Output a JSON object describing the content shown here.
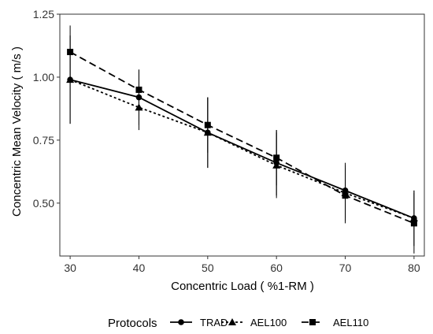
{
  "chart_data": {
    "type": "line",
    "xlabel": "Concentric Load ( %1-RM )",
    "ylabel": "Concentric Mean Velocity ( m/s )",
    "x": [
      30,
      40,
      50,
      60,
      70,
      80
    ],
    "x_ticks": [
      "30",
      "40",
      "50",
      "60",
      "70",
      "80"
    ],
    "y_ticks": [
      "0.50",
      "0.75",
      "1.00",
      "1.25"
    ],
    "xlim": [
      28.5,
      81.5
    ],
    "ylim": [
      0.29,
      1.25
    ],
    "grid": false,
    "legend": {
      "title": "Protocols",
      "position": "bottom"
    },
    "series": [
      {
        "name": "TRAD",
        "marker": "circle",
        "dash": "solid",
        "values": [
          0.99,
          0.92,
          0.78,
          0.66,
          0.55,
          0.44
        ],
        "error": [
          0.175,
          0.11,
          0.14,
          0.13,
          0.11,
          0.11
        ]
      },
      {
        "name": "AEL100",
        "marker": "triangle",
        "dash": "dotted",
        "values": [
          0.99,
          0.88,
          0.78,
          0.65,
          0.54,
          0.44
        ],
        "error": [
          0.175,
          0.09,
          0.14,
          0.13,
          0.11,
          0.11
        ]
      },
      {
        "name": "AEL110",
        "marker": "square",
        "dash": "dashed",
        "values": [
          1.1,
          0.95,
          0.81,
          0.68,
          0.53,
          0.42
        ],
        "error": [
          0.105,
          0.08,
          0.11,
          0.11,
          0.11,
          0.12
        ]
      }
    ],
    "colors": {
      "line": "#000000",
      "panel_border": "#333333",
      "background": "#ffffff"
    }
  }
}
